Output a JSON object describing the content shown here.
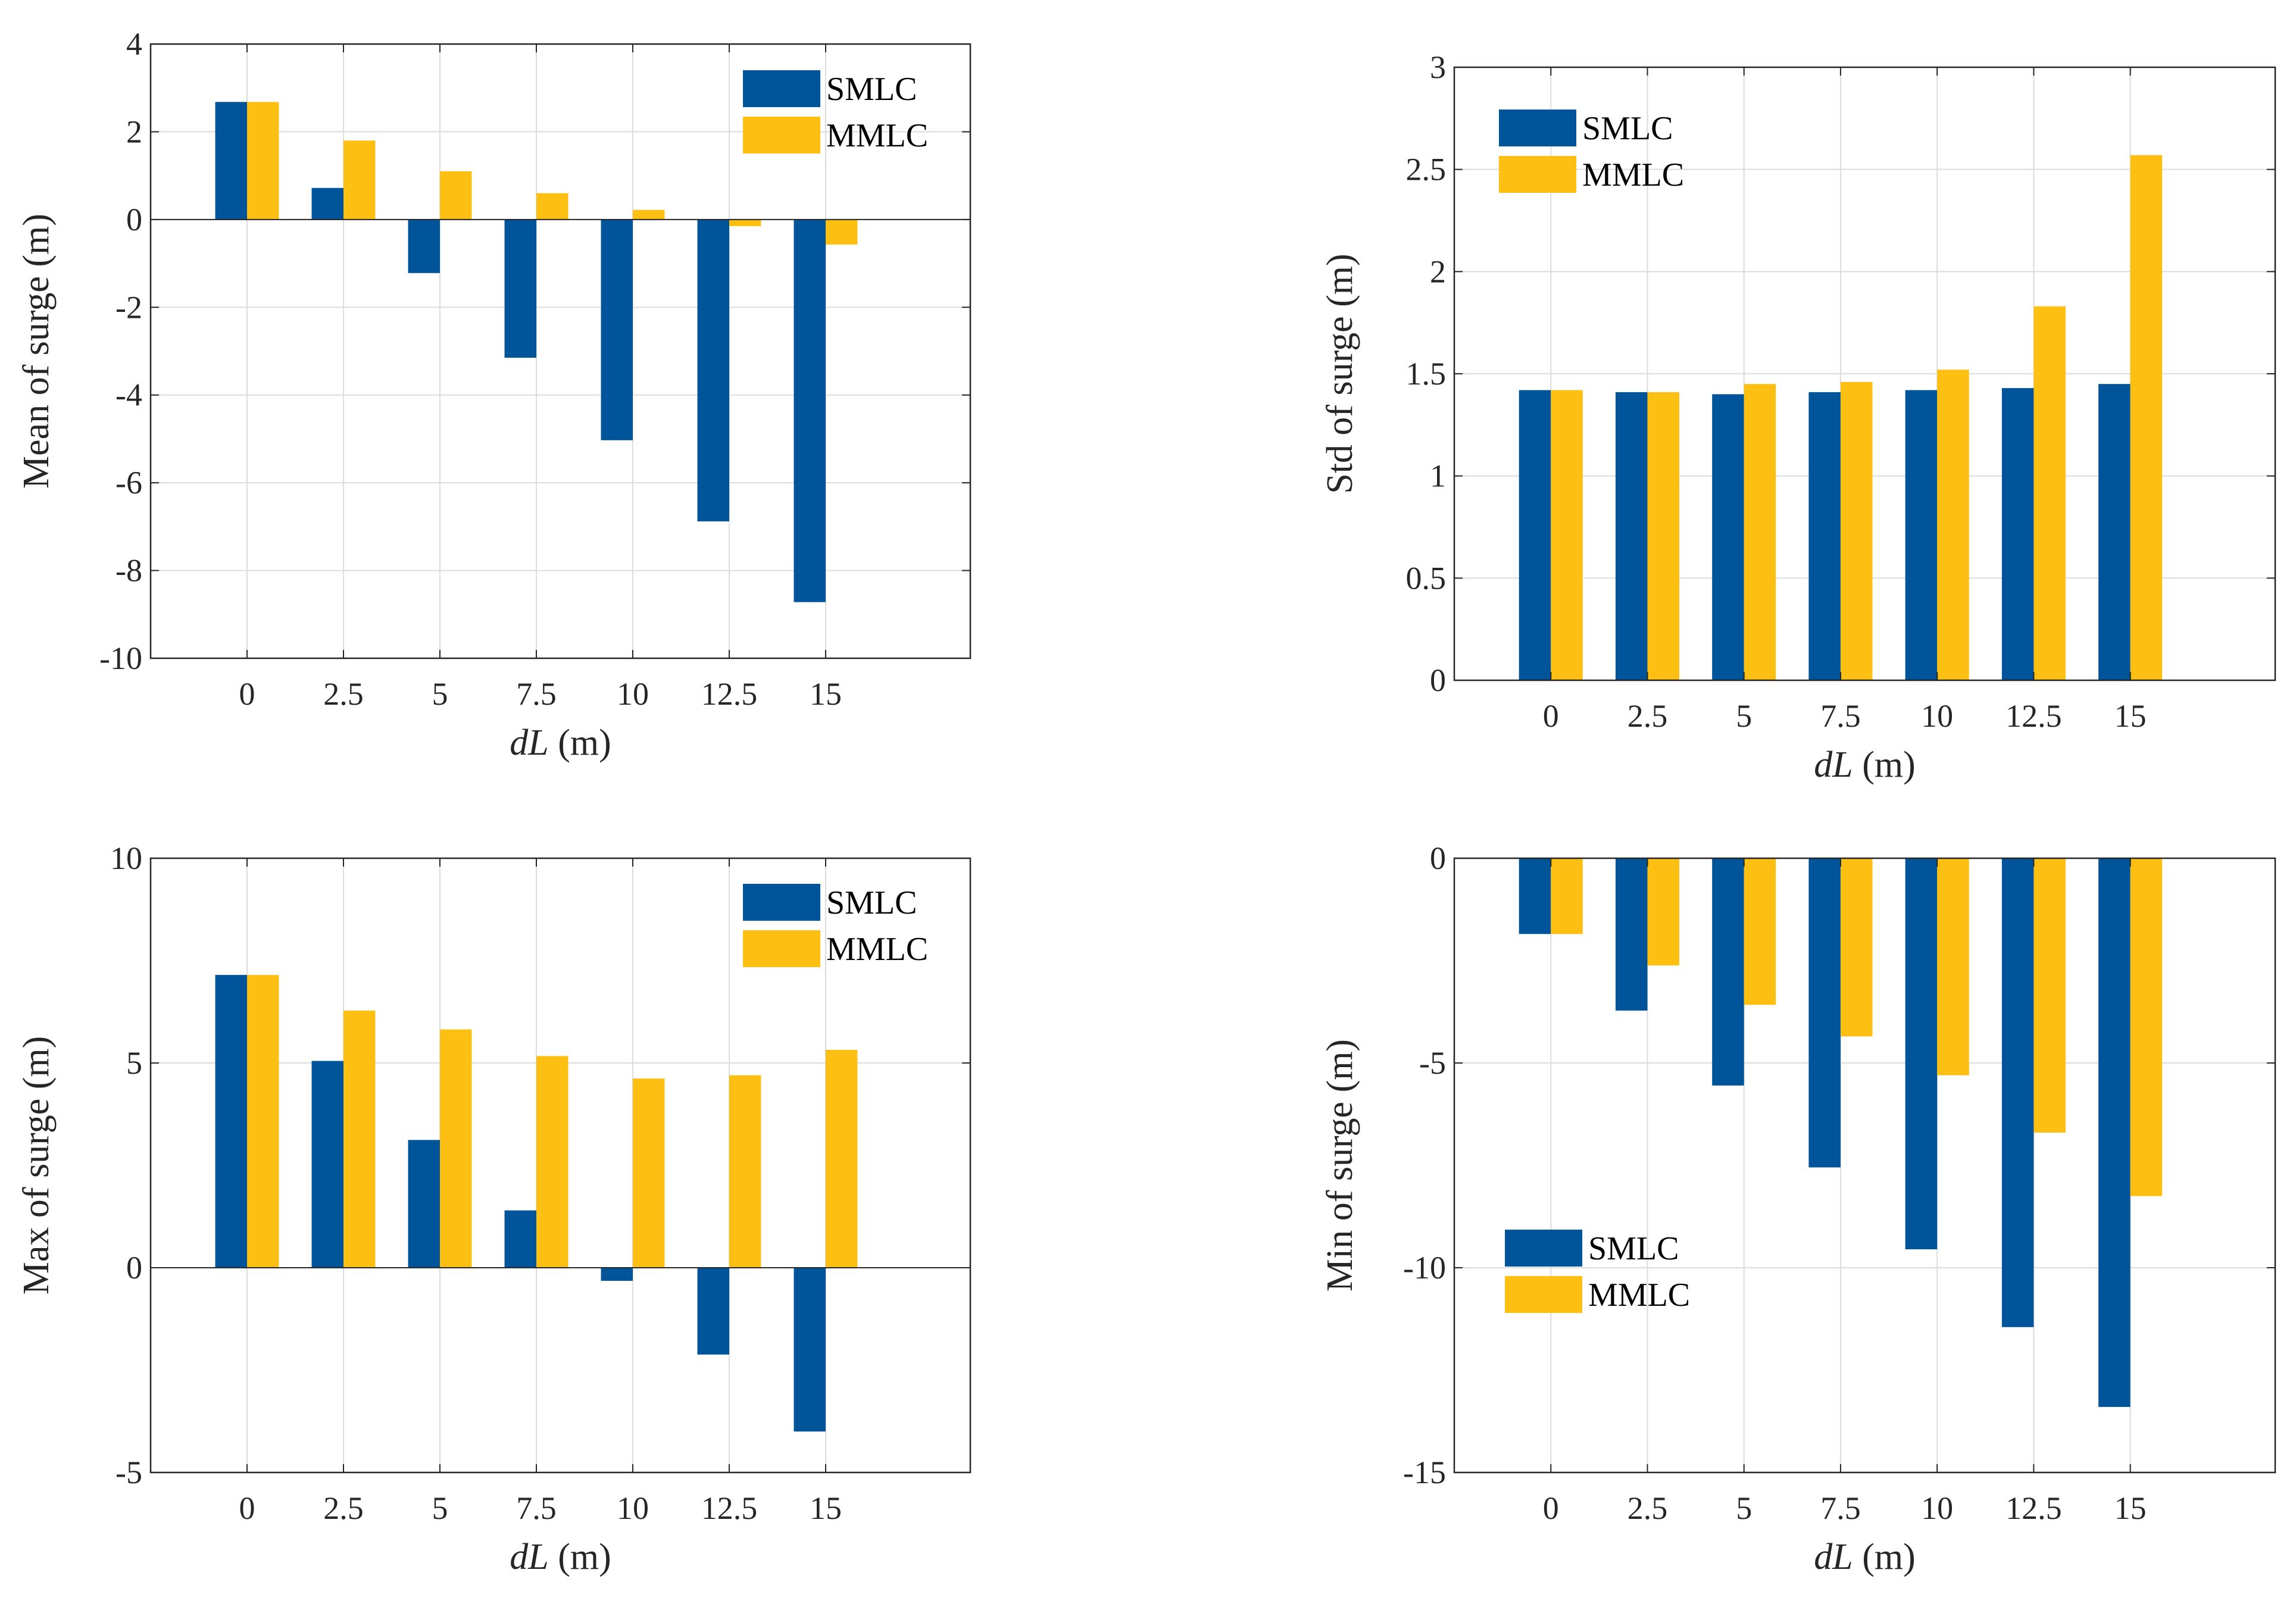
{
  "colors": {
    "SMLC": "#00549A",
    "MMLC": "#FDBF11"
  },
  "chart_data": [
    {
      "type": "bar",
      "title": "",
      "categories": [
        "0",
        "2.5",
        "5",
        "7.5",
        "10",
        "12.5",
        "15"
      ],
      "xlabel_italic": "dL",
      "xlabel_unit": " (m)",
      "ylabel": "Mean of surge (m)",
      "ylim": [
        -10,
        4
      ],
      "yticks": [
        -10,
        -8,
        -6,
        -4,
        -2,
        0,
        2,
        4
      ],
      "ytick_labels": [
        "-10",
        "-8",
        "-6",
        "-4",
        "-2",
        "0",
        "2",
        "4"
      ],
      "legend_position": "top-right",
      "series": [
        {
          "name": "SMLC",
          "values": [
            2.68,
            0.72,
            -1.22,
            -3.15,
            -5.03,
            -6.88,
            -8.72
          ]
        },
        {
          "name": "MMLC",
          "values": [
            2.68,
            1.8,
            1.1,
            0.6,
            0.22,
            -0.15,
            -0.57
          ]
        }
      ]
    },
    {
      "type": "bar",
      "title": "",
      "categories": [
        "0",
        "2.5",
        "5",
        "7.5",
        "10",
        "12.5",
        "15"
      ],
      "xlabel_italic": "dL",
      "xlabel_unit": " (m)",
      "ylabel": "Std of surge (m)",
      "ylim": [
        0,
        3
      ],
      "yticks": [
        0,
        0.5,
        1,
        1.5,
        2,
        2.5,
        3
      ],
      "ytick_labels": [
        "0",
        "0.5",
        "1",
        "1.5",
        "2",
        "2.5",
        "3"
      ],
      "legend_position": "top-left",
      "series": [
        {
          "name": "SMLC",
          "values": [
            1.42,
            1.41,
            1.4,
            1.41,
            1.42,
            1.43,
            1.45
          ]
        },
        {
          "name": "MMLC",
          "values": [
            1.42,
            1.41,
            1.45,
            1.46,
            1.52,
            1.83,
            2.57
          ]
        }
      ]
    },
    {
      "type": "bar",
      "title": "",
      "categories": [
        "0",
        "2.5",
        "5",
        "7.5",
        "10",
        "12.5",
        "15"
      ],
      "xlabel_italic": "dL",
      "xlabel_unit": " (m)",
      "ylabel": "Max of surge (m)",
      "ylim": [
        -5,
        10
      ],
      "yticks": [
        -5,
        0,
        5,
        10
      ],
      "ytick_labels": [
        "-5",
        "0",
        "5",
        "10"
      ],
      "legend_position": "top-right",
      "series": [
        {
          "name": "SMLC",
          "values": [
            7.15,
            5.05,
            3.12,
            1.4,
            -0.32,
            -2.12,
            -4.0
          ]
        },
        {
          "name": "MMLC",
          "values": [
            7.15,
            6.28,
            5.82,
            5.17,
            4.62,
            4.7,
            5.32
          ]
        }
      ]
    },
    {
      "type": "bar",
      "title": "",
      "categories": [
        "0",
        "2.5",
        "5",
        "7.5",
        "10",
        "12.5",
        "15"
      ],
      "xlabel_italic": "dL",
      "xlabel_unit": " (m)",
      "ylabel": "Min of surge (m)",
      "ylim": [
        -15,
        0
      ],
      "yticks": [
        -15,
        -10,
        -5,
        0
      ],
      "ytick_labels": [
        "-15",
        "-10",
        "-5",
        "0"
      ],
      "legend_position": "lower-left",
      "series": [
        {
          "name": "SMLC",
          "values": [
            -1.85,
            -3.72,
            -5.55,
            -7.55,
            -9.55,
            -11.45,
            -13.4
          ]
        },
        {
          "name": "MMLC",
          "values": [
            -1.85,
            -2.62,
            -3.58,
            -4.35,
            -5.3,
            -6.7,
            -8.25
          ]
        }
      ]
    }
  ]
}
